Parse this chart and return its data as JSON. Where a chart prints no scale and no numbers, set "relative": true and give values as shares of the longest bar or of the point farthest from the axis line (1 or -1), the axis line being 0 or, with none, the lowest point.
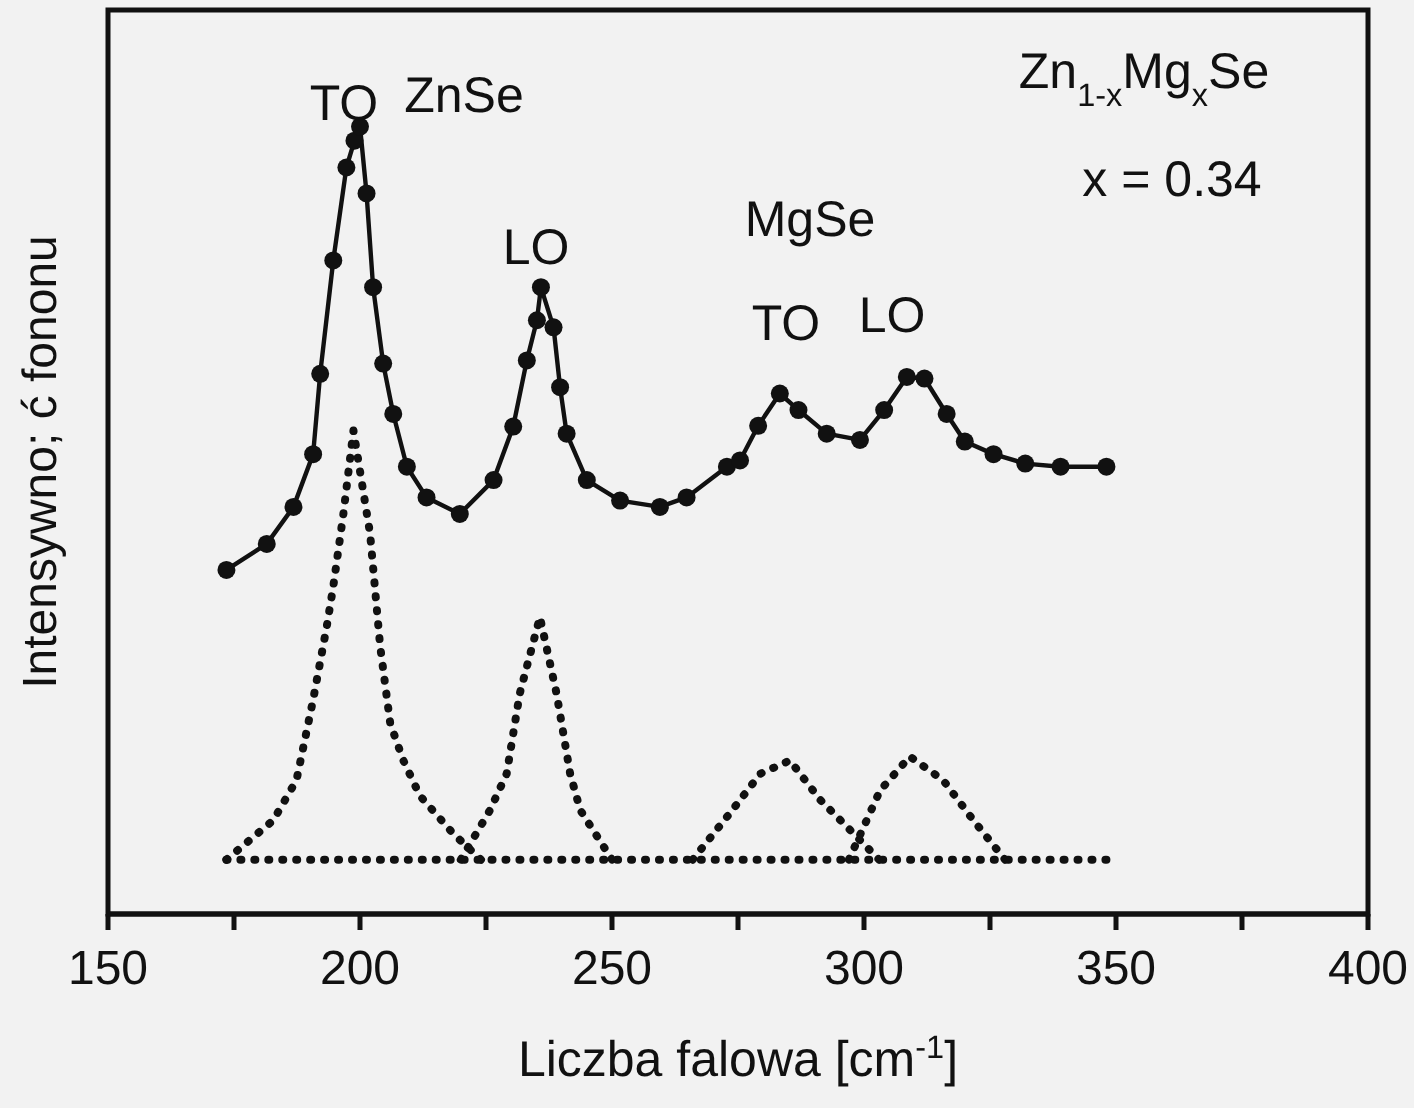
{
  "chart_data": {
    "type": "line",
    "relative": true,
    "xlabel": "Liczba falowa [cm$^{-1}$]",
    "ylabel": "Intensywno; ć fononu",
    "xlim": [
      150,
      400
    ],
    "xticks": [
      150,
      {
        "value": 175,
        "label": null
      },
      200,
      {
        "value": 225,
        "label": null
      },
      250,
      {
        "value": 275,
        "label": null
      },
      300,
      {
        "value": 325,
        "label": null
      },
      350,
      {
        "value": 375,
        "label": null
      },
      400
    ],
    "grid": false,
    "annotations": [
      "TO",
      "ZnSe",
      "LO",
      "MgSe",
      "TO",
      "LO",
      "Zn$_{1-x}$Mg$_{x}$Se",
      "x = 0.34"
    ],
    "series": [
      {
        "color": "#111111",
        "marker": "circle",
        "line_style": "solid",
        "x": [
          173.5,
          181.5,
          186.8,
          190.7,
          192.1,
          194.7,
          197.3,
          198.9,
          200,
          201.3,
          202.6,
          204.6,
          206.6,
          209.3,
          213.2,
          219.8,
          226.5,
          230.4,
          233.1,
          235.1,
          235.9,
          238.4,
          239.7,
          241,
          245,
          251.6,
          259.5,
          264.8,
          272.8,
          275.4,
          279,
          283.3,
          287,
          292.6,
          299.2,
          304,
          308.5,
          312,
          316.4,
          320,
          325.7,
          332,
          339,
          348.1
        ],
        "values": [
          0.437,
          0.47,
          0.517,
          0.584,
          0.686,
          0.83,
          0.948,
          0.982,
          1,
          0.915,
          0.796,
          0.699,
          0.635,
          0.568,
          0.529,
          0.508,
          0.551,
          0.619,
          0.703,
          0.754,
          0.796,
          0.745,
          0.669,
          0.61,
          0.551,
          0.525,
          0.517,
          0.529,
          0.568,
          0.576,
          0.62,
          0.661,
          0.64,
          0.61,
          0.602,
          0.64,
          0.682,
          0.68,
          0.635,
          0.6,
          0.584,
          0.572,
          0.568,
          0.568
        ]
      },
      {
        "color": "#111111",
        "marker": "none",
        "line_style": "dotted",
        "x": [
          173.5,
          182.8,
          187.4,
          190.7,
          193.4,
          194.7,
          196.7,
          198.7,
          202,
          204,
          206,
          208.6,
          211.9,
          218.5,
          224
        ],
        "values": [
          0.069,
          0.119,
          0.17,
          0.272,
          0.365,
          0.416,
          0.508,
          0.614,
          0.483,
          0.34,
          0.242,
          0.195,
          0.15,
          0.102,
          0.069
        ]
      },
      {
        "color": "#111111",
        "marker": "none",
        "line_style": "dotted",
        "x": [
          220,
          225.8,
          229.1,
          231.7,
          235.7,
          239,
          241.7,
          243.7,
          250
        ],
        "values": [
          0.069,
          0.132,
          0.178,
          0.28,
          0.377,
          0.28,
          0.178,
          0.132,
          0.069
        ]
      },
      {
        "color": "#111111",
        "marker": "none",
        "line_style": "dotted",
        "x": [
          266,
          273.4,
          279.4,
          285.3,
          291.3,
          297.2,
          303
        ],
        "values": [
          0.069,
          0.128,
          0.178,
          0.195,
          0.145,
          0.107,
          0.069
        ]
      },
      {
        "color": "#111111",
        "marker": "none",
        "line_style": "dotted",
        "x": [
          297,
          303.2,
          309.1,
          315.7,
          321.7,
          328
        ],
        "values": [
          0.069,
          0.157,
          0.2,
          0.17,
          0.119,
          0.069
        ]
      },
      {
        "color": "#111111",
        "marker": "none",
        "line_style": "dotted",
        "x": [
          173.5,
          348.1
        ],
        "values": [
          0.069,
          0.069
        ]
      }
    ]
  }
}
